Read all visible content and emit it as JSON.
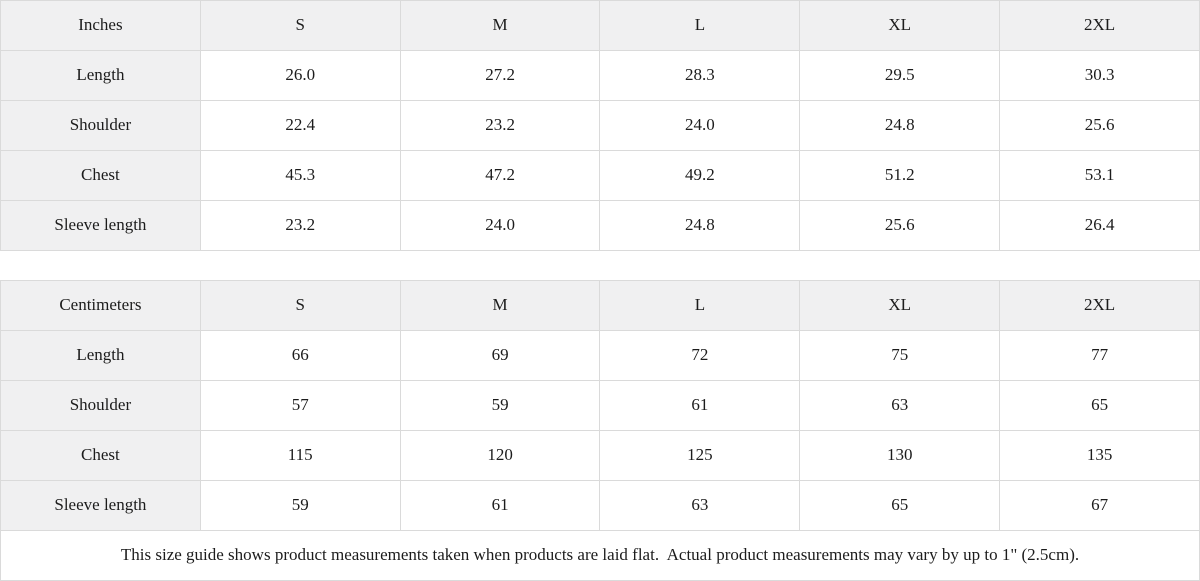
{
  "colors": {
    "header_cell_bg": "#f0f0f1",
    "border": "#dadada",
    "text": "#1c1c1c",
    "data_cell_bg": "#ffffff"
  },
  "size_columns": [
    "S",
    "M",
    "L",
    "XL",
    "2XL"
  ],
  "inches_table": {
    "unit_label": "Inches",
    "rows": [
      {
        "label": "Length",
        "values": [
          "26.0",
          "27.2",
          "28.3",
          "29.5",
          "30.3"
        ]
      },
      {
        "label": "Shoulder",
        "values": [
          "22.4",
          "23.2",
          "24.0",
          "24.8",
          "25.6"
        ]
      },
      {
        "label": "Chest",
        "values": [
          "45.3",
          "47.2",
          "49.2",
          "51.2",
          "53.1"
        ]
      },
      {
        "label": "Sleeve length",
        "values": [
          "23.2",
          "24.0",
          "24.8",
          "25.6",
          "26.4"
        ]
      }
    ]
  },
  "centimeters_table": {
    "unit_label": "Centimeters",
    "rows": [
      {
        "label": "Length",
        "values": [
          "66",
          "69",
          "72",
          "75",
          "77"
        ]
      },
      {
        "label": "Shoulder",
        "values": [
          "57",
          "59",
          "61",
          "63",
          "65"
        ]
      },
      {
        "label": "Chest",
        "values": [
          "115",
          "120",
          "125",
          "130",
          "135"
        ]
      },
      {
        "label": "Sleeve length",
        "values": [
          "59",
          "61",
          "63",
          "65",
          "67"
        ]
      }
    ]
  },
  "footer_note": "This size guide shows product measurements taken when products are laid flat.  Actual product measurements may vary by up to 1\" (2.5cm)."
}
